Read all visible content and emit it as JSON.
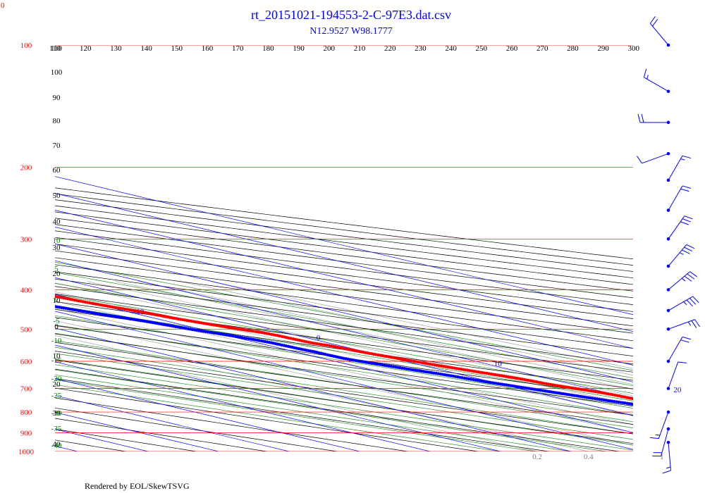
{
  "corner_label": "0",
  "footer": "Rendered by EOL/SkewTSVG",
  "chart_data": {
    "type": "scatter",
    "title": "rt_20151021-194553-2-C-97E3.dat.csv",
    "subtitle": "N12.9527 W98.1777",
    "pressure_ticks": [
      "100",
      "200",
      "300",
      "400",
      "500",
      "600",
      "700",
      "800",
      "900",
      "1000"
    ],
    "pressure_levels": [
      100,
      200,
      300,
      400,
      500,
      600,
      700,
      800,
      900,
      1000
    ],
    "potential_temperature_ticks": [
      "110",
      "120",
      "130",
      "140",
      "150",
      "160",
      "170",
      "180",
      "190",
      "200",
      "210",
      "220",
      "230",
      "240",
      "250",
      "260",
      "270",
      "280",
      "290",
      "300"
    ],
    "isotherm_labels": [
      "-100",
      "-90",
      "-80",
      "-70",
      "-60",
      "-50",
      "-40",
      "-30",
      "-20",
      "-10",
      "0",
      "10",
      "20",
      "30"
    ],
    "isotherm_values": [
      -100,
      -90,
      -80,
      -70,
      -60,
      -50,
      -40,
      -30,
      -20,
      -10,
      0,
      10,
      20,
      30
    ],
    "height_labels": [
      "110",
      "100",
      "90",
      "80",
      "70",
      "60",
      "50",
      "40",
      "30",
      "20",
      "10",
      "0",
      "10",
      "20",
      "30",
      "40"
    ],
    "moist_adiabat_labels": [
      "15",
      "20",
      "25",
      "30",
      "35"
    ],
    "moist_adiabat_values": [
      15,
      20,
      25,
      30,
      35
    ],
    "moist_adiabat_side_labels": [
      "10",
      "5",
      "0",
      "-5",
      "-10",
      "-15",
      "-20",
      "-25",
      "-30",
      "-35",
      "-40"
    ],
    "mixing_ratio_labels": [
      "0.2",
      "0.4",
      "1",
      "2",
      "3",
      "5",
      "8",
      "12",
      "16",
      "20",
      "30",
      "40"
    ],
    "mixing_ratio_values": [
      0.2,
      0.4,
      1,
      2,
      3,
      5,
      8,
      12,
      16,
      20,
      30,
      40
    ],
    "temperature_profile": [
      [
        998,
        25.2
      ],
      [
        990,
        24.0
      ],
      [
        980,
        23.5
      ],
      [
        970,
        23.0
      ],
      [
        960,
        22.8
      ],
      [
        950,
        22.4
      ],
      [
        940,
        21.8
      ],
      [
        930,
        21.0
      ],
      [
        920,
        20.4
      ],
      [
        910,
        19.8
      ],
      [
        900,
        19.0
      ],
      [
        890,
        18.8
      ],
      [
        880,
        18.4
      ],
      [
        870,
        18.0
      ],
      [
        860,
        17.4
      ],
      [
        850,
        16.8
      ],
      [
        840,
        16.2
      ],
      [
        830,
        15.8
      ],
      [
        820,
        15.4
      ],
      [
        810,
        14.8
      ],
      [
        800,
        14.2
      ],
      [
        790,
        13.4
      ],
      [
        780,
        12.6
      ],
      [
        770,
        11.8
      ],
      [
        760,
        11.0
      ],
      [
        750,
        10.4
      ],
      [
        740,
        10.0
      ],
      [
        730,
        9.8
      ],
      [
        720,
        9.4
      ],
      [
        710,
        8.8
      ],
      [
        700,
        8.0
      ],
      [
        690,
        7.2
      ],
      [
        680,
        6.6
      ],
      [
        670,
        6.2
      ],
      [
        660,
        5.8
      ],
      [
        650,
        5.0
      ],
      [
        640,
        4.2
      ],
      [
        630,
        3.4
      ],
      [
        620,
        2.6
      ],
      [
        610,
        1.8
      ],
      [
        600,
        1.2
      ],
      [
        590,
        0.6
      ],
      [
        580,
        0.0
      ],
      [
        570,
        -0.6
      ],
      [
        560,
        -1.0
      ],
      [
        550,
        -1.4
      ],
      [
        545,
        -1.9
      ],
      [
        540,
        -2.4
      ],
      [
        530,
        -2.6
      ],
      [
        520,
        -2.8
      ],
      [
        510,
        -3.2
      ],
      [
        505,
        -3.8
      ],
      [
        500,
        -4.4
      ],
      [
        490,
        -5.4
      ],
      [
        480,
        -6.4
      ],
      [
        470,
        -7.2
      ],
      [
        460,
        -7.8
      ],
      [
        450,
        -8.4
      ],
      [
        440,
        -9.4
      ],
      [
        430,
        -10.2
      ],
      [
        420,
        -10.8
      ],
      [
        410,
        -11.6
      ],
      [
        400,
        -12.6
      ],
      [
        390,
        -13.8
      ],
      [
        380,
        -15.0
      ],
      [
        370,
        -16.4
      ],
      [
        360,
        -17.6
      ],
      [
        350,
        -19.0
      ],
      [
        340,
        -20.4
      ],
      [
        330,
        -21.8
      ],
      [
        320,
        -23.2
      ],
      [
        310,
        -24.8
      ],
      [
        300,
        -26.4
      ],
      [
        290,
        -28.0
      ],
      [
        280,
        -29.8
      ],
      [
        270,
        -31.6
      ],
      [
        260,
        -33.6
      ],
      [
        250,
        -35.6
      ],
      [
        240,
        -37.8
      ],
      [
        230,
        -39.8
      ],
      [
        220,
        -42.2
      ],
      [
        210,
        -44.4
      ],
      [
        200,
        -46.6
      ],
      [
        190,
        -49.2
      ],
      [
        180,
        -51.8
      ],
      [
        170,
        -54.2
      ],
      [
        160,
        -57.2
      ],
      [
        150,
        -60.0
      ],
      [
        140,
        -63.2
      ],
      [
        130,
        -66.4
      ],
      [
        120,
        -69.6
      ],
      [
        115,
        -71.6
      ],
      [
        110,
        -73.6
      ],
      [
        105,
        -75.2
      ],
      [
        100,
        -76.4
      ],
      [
        96,
        -77.4
      ],
      [
        93,
        -77.2
      ],
      [
        91,
        -76.4
      ],
      [
        90,
        -75.4
      ],
      [
        89,
        -74.2
      ],
      [
        88,
        -73.0
      ],
      [
        87,
        -71.8
      ],
      [
        86,
        -70.6
      ],
      [
        85,
        -69.4
      ],
      [
        84,
        -68.2
      ],
      [
        83,
        -67.0
      ],
      [
        82,
        -66.0
      ],
      [
        78,
        -64.0
      ],
      [
        75,
        -60.8
      ],
      [
        72,
        -59.2
      ],
      [
        70,
        -58.4
      ],
      [
        68,
        -57.8
      ],
      [
        66,
        -57.0
      ],
      [
        64,
        -56.4
      ],
      [
        62,
        -55.8
      ],
      [
        60,
        -55.2
      ],
      [
        58,
        -54.4
      ]
    ],
    "dewpoint_profile": [
      [
        998,
        19.6
      ],
      [
        990,
        19.0
      ],
      [
        980,
        18.6
      ],
      [
        970,
        18.2
      ],
      [
        960,
        17.6
      ],
      [
        950,
        17.0
      ],
      [
        940,
        16.6
      ],
      [
        930,
        16.0
      ],
      [
        920,
        15.6
      ],
      [
        910,
        15.6
      ],
      [
        900,
        15.8
      ],
      [
        890,
        15.6
      ],
      [
        880,
        15.2
      ],
      [
        870,
        14.6
      ],
      [
        860,
        14.0
      ],
      [
        850,
        13.2
      ],
      [
        840,
        12.4
      ],
      [
        830,
        11.6
      ],
      [
        820,
        10.8
      ],
      [
        810,
        10.2
      ],
      [
        800,
        9.6
      ],
      [
        790,
        8.8
      ],
      [
        780,
        8.0
      ],
      [
        770,
        7.2
      ],
      [
        760,
        6.4
      ],
      [
        750,
        5.4
      ],
      [
        740,
        4.6
      ],
      [
        730,
        3.8
      ],
      [
        720,
        3.0
      ],
      [
        710,
        2.2
      ],
      [
        700,
        1.4
      ],
      [
        690,
        0.6
      ],
      [
        680,
        -0.2
      ],
      [
        670,
        -1.0
      ],
      [
        660,
        -1.6
      ],
      [
        650,
        -2.2
      ],
      [
        640,
        -3.0
      ],
      [
        630,
        -4.0
      ],
      [
        620,
        -4.8
      ],
      [
        610,
        -5.6
      ],
      [
        600,
        -6.4
      ],
      [
        590,
        -7.0
      ],
      [
        580,
        -7.2
      ],
      [
        570,
        -7.2
      ],
      [
        560,
        -7.6
      ],
      [
        550,
        -7.8
      ],
      [
        540,
        -8.0
      ],
      [
        530,
        -8.6
      ],
      [
        520,
        -9.4
      ],
      [
        510,
        -10.4
      ],
      [
        500,
        -11.4
      ],
      [
        490,
        -12.2
      ],
      [
        480,
        -13.0
      ],
      [
        470,
        -14.0
      ],
      [
        460,
        -15.2
      ],
      [
        450,
        -16.2
      ],
      [
        440,
        -17.2
      ],
      [
        430,
        -18.0
      ],
      [
        420,
        -18.8
      ],
      [
        410,
        -19.8
      ],
      [
        400,
        -21.0
      ],
      [
        390,
        -22.8
      ],
      [
        380,
        -24.6
      ],
      [
        370,
        -26.4
      ],
      [
        360,
        -28.6
      ],
      [
        350,
        -30.6
      ],
      [
        340,
        -33.0
      ],
      [
        330,
        -35.4
      ],
      [
        320,
        -38.2
      ],
      [
        310,
        -41.4
      ],
      [
        300,
        -44.6
      ],
      [
        290,
        -48.4
      ],
      [
        280,
        -52.4
      ],
      [
        270,
        -56.8
      ],
      [
        260,
        -61.4
      ],
      [
        250,
        -66.0
      ],
      [
        240,
        -70.8
      ],
      [
        230,
        -75.8
      ],
      [
        220,
        -81.0
      ],
      [
        210,
        -86.4
      ],
      [
        200,
        -92.0
      ],
      [
        190,
        -97.6
      ],
      [
        180,
        -103.0
      ]
    ],
    "wind_barbs": [
      {
        "pressure": 100,
        "direction": 320,
        "speed": 20
      },
      {
        "pressure": 130,
        "direction": 300,
        "speed": 15
      },
      {
        "pressure": 155,
        "direction": 270,
        "speed": 20
      },
      {
        "pressure": 185,
        "direction": 250,
        "speed": 10
      },
      {
        "pressure": 215,
        "direction": 30,
        "speed": 15
      },
      {
        "pressure": 255,
        "direction": 30,
        "speed": 20
      },
      {
        "pressure": 300,
        "direction": 35,
        "speed": 30
      },
      {
        "pressure": 350,
        "direction": 40,
        "speed": 35
      },
      {
        "pressure": 400,
        "direction": 50,
        "speed": 35
      },
      {
        "pressure": 450,
        "direction": 60,
        "speed": 35
      },
      {
        "pressure": 500,
        "direction": 70,
        "speed": 25
      },
      {
        "pressure": 600,
        "direction": 30,
        "speed": 20
      },
      {
        "pressure": 700,
        "direction": 20,
        "speed": 10
      },
      {
        "pressure": 800,
        "direction": 200,
        "speed": 15
      },
      {
        "pressure": 880,
        "direction": 195,
        "speed": 20
      },
      {
        "pressure": 950,
        "direction": 175,
        "speed": 15
      }
    ],
    "colors": {
      "temperature": "#ff0000",
      "dewpoint": "#0000ff",
      "isobars": "#ff0000",
      "isotherms": "#0000ff",
      "dry_adiabats": "#000000",
      "moist_adiabats": "#008000",
      "mixing_ratio": "#808080",
      "wind": "#0000ff",
      "title": "#0000ff"
    }
  }
}
